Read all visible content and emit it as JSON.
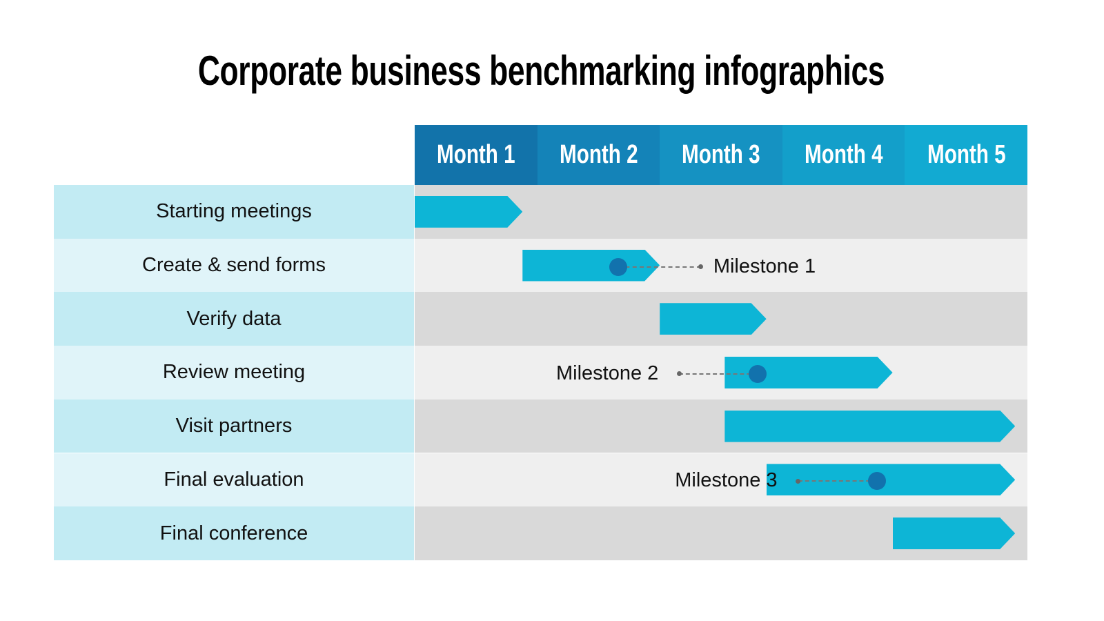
{
  "title": "Corporate business benchmarking infographics",
  "colors": {
    "bar": "#0db5d6",
    "milestone_dot": "#1272ad",
    "label_odd": "#c2ebf3",
    "label_even": "#e0f4f9",
    "track_odd": "#d9d9d9",
    "track_even": "#efefef",
    "month_headers": [
      "#1273aa",
      "#1483b8",
      "#1592c2",
      "#139fca",
      "#12aad2"
    ]
  },
  "months": [
    "Month 1",
    "Month 2",
    "Month 3",
    "Month 4",
    "Month 5"
  ],
  "tasks": [
    {
      "label": "Starting meetings",
      "start": 0,
      "end": 0.88
    },
    {
      "label": "Create & send forms",
      "start": 0.88,
      "end": 2.0
    },
    {
      "label": "Verify data",
      "start": 2.0,
      "end": 2.87
    },
    {
      "label": "Review meeting",
      "start": 2.53,
      "end": 3.9
    },
    {
      "label": "Visit partners",
      "start": 2.53,
      "end": 4.9
    },
    {
      "label": "Final evaluation",
      "start": 2.87,
      "end": 4.9
    },
    {
      "label": "Final conference",
      "start": 3.9,
      "end": 4.9
    }
  ],
  "milestones": [
    {
      "label": "Milestone 1",
      "task": 1,
      "at": 1.66,
      "side": "right"
    },
    {
      "label": "Milestone 2",
      "task": 3,
      "at": 2.8,
      "side": "left"
    },
    {
      "label": "Milestone 3",
      "task": 5,
      "at": 3.77,
      "side": "left"
    }
  ]
}
